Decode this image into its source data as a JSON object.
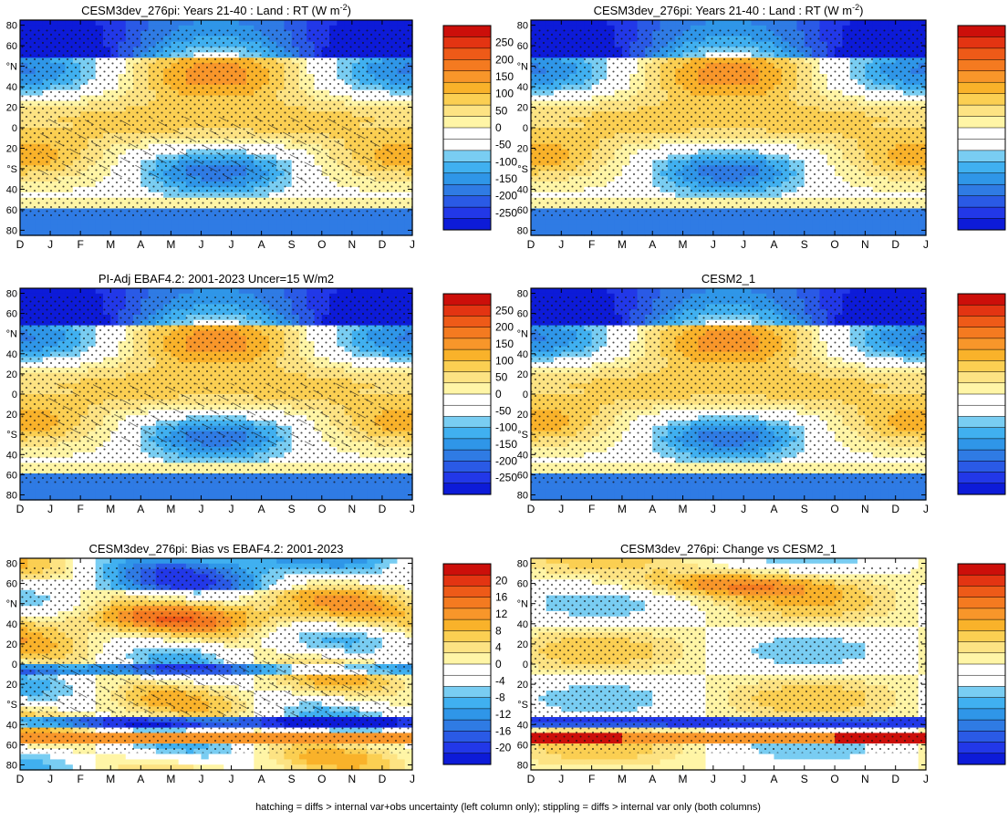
{
  "footer": "hatching = diffs > internal var+obs uncertainty (left column only); stippling = diffs > internal var only (both columns)",
  "months": [
    "D",
    "J",
    "F",
    "M",
    "A",
    "M",
    "J",
    "J",
    "A",
    "S",
    "O",
    "N",
    "D",
    "J"
  ],
  "lat_ticks": [
    "80",
    "60",
    "°N",
    "40",
    "20",
    "0",
    "20",
    "°S",
    "40",
    "60",
    "80"
  ],
  "chart_data": [
    {
      "type": "heatmap",
      "title": "CESM3dev_276pi: Years 21-40 : Land : RT (W m-2)",
      "title_main": "CESM3dev_276pi: Years 21-40 : Land : RT (W m",
      "title_sup": "-2",
      "title_end": ")",
      "x_categories": [
        "D",
        "J",
        "F",
        "M",
        "A",
        "M",
        "J",
        "J",
        "A",
        "S",
        "O",
        "N",
        "D",
        "J"
      ],
      "y_ticks": [
        "80",
        "60",
        "°N",
        "40",
        "20",
        "0",
        "20",
        "°S",
        "40",
        "60",
        "80"
      ],
      "colorbar": {
        "levels": [
          250,
          200,
          150,
          100,
          50,
          0,
          -50,
          -100,
          -150,
          -200,
          -250
        ]
      },
      "hatching": true,
      "stippling": true,
      "field": "full"
    },
    {
      "type": "heatmap",
      "title": "CESM3dev_276pi: Years 21-40 : Land : RT (W m-2)",
      "title_main": "CESM3dev_276pi: Years 21-40 : Land : RT (W m",
      "title_sup": "-2",
      "title_end": ")",
      "x_categories": [
        "D",
        "J",
        "F",
        "M",
        "A",
        "M",
        "J",
        "J",
        "A",
        "S",
        "O",
        "N",
        "D",
        "J"
      ],
      "y_ticks": [
        "80",
        "60",
        "°N",
        "40",
        "20",
        "0",
        "20",
        "°S",
        "40",
        "60",
        "80"
      ],
      "colorbar": {
        "levels": [
          250,
          200,
          150,
          100,
          50,
          0,
          -50,
          -100,
          -150,
          -200,
          -250
        ]
      },
      "hatching": false,
      "stippling": true,
      "field": "full"
    },
    {
      "type": "heatmap",
      "title": "PI-Adj EBAF4.2: 2001-2023 Uncer=15 W/m2",
      "title_main": "PI-Adj EBAF4.2: 2001-2023 Uncer=15 W/m2",
      "title_sup": "",
      "title_end": "",
      "x_categories": [
        "D",
        "J",
        "F",
        "M",
        "A",
        "M",
        "J",
        "J",
        "A",
        "S",
        "O",
        "N",
        "D",
        "J"
      ],
      "y_ticks": [
        "80",
        "60",
        "°N",
        "40",
        "20",
        "0",
        "20",
        "°S",
        "40",
        "60",
        "80"
      ],
      "colorbar": {
        "levels": [
          250,
          200,
          150,
          100,
          50,
          0,
          -50,
          -100,
          -150,
          -200,
          -250
        ]
      },
      "hatching": true,
      "stippling": true,
      "field": "full"
    },
    {
      "type": "heatmap",
      "title": "CESM2_1",
      "title_main": "CESM2_1",
      "title_sup": "",
      "title_end": "",
      "x_categories": [
        "D",
        "J",
        "F",
        "M",
        "A",
        "M",
        "J",
        "J",
        "A",
        "S",
        "O",
        "N",
        "D",
        "J"
      ],
      "y_ticks": [
        "80",
        "60",
        "°N",
        "40",
        "20",
        "0",
        "20",
        "°S",
        "40",
        "60",
        "80"
      ],
      "colorbar": {
        "levels": [
          250,
          200,
          150,
          100,
          50,
          0,
          -50,
          -100,
          -150,
          -200,
          -250
        ]
      },
      "hatching": false,
      "stippling": true,
      "field": "full"
    },
    {
      "type": "heatmap",
      "title": "CESM3dev_276pi: Bias vs EBAF4.2: 2001-2023",
      "title_main": "CESM3dev_276pi: Bias vs EBAF4.2: 2001-2023",
      "title_sup": "",
      "title_end": "",
      "x_categories": [
        "D",
        "J",
        "F",
        "M",
        "A",
        "M",
        "J",
        "J",
        "A",
        "S",
        "O",
        "N",
        "D",
        "J"
      ],
      "y_ticks": [
        "80",
        "60",
        "°N",
        "40",
        "20",
        "0",
        "20",
        "°S",
        "40",
        "60",
        "80"
      ],
      "colorbar": {
        "levels": [
          20,
          16,
          12,
          8,
          4,
          0,
          -4,
          -8,
          -12,
          -16,
          -20
        ]
      },
      "hatching": true,
      "stippling": true,
      "field": "bias"
    },
    {
      "type": "heatmap",
      "title": "CESM3dev_276pi: Change vs CESM2_1",
      "title_main": "CESM3dev_276pi: Change vs CESM2_1",
      "title_sup": "",
      "title_end": "",
      "x_categories": [
        "D",
        "J",
        "F",
        "M",
        "A",
        "M",
        "J",
        "J",
        "A",
        "S",
        "O",
        "N",
        "D",
        "J"
      ],
      "y_ticks": [
        "80",
        "60",
        "°N",
        "40",
        "20",
        "0",
        "20",
        "°S",
        "40",
        "60",
        "80"
      ],
      "colorbar": {
        "levels": [
          20,
          16,
          12,
          8,
          4,
          0,
          -4,
          -8,
          -12,
          -16,
          -20
        ]
      },
      "hatching": false,
      "stippling": true,
      "field": "change"
    }
  ],
  "colors": {
    "scale": [
      "#0d1bd8",
      "#2238e8",
      "#2a5ae6",
      "#2f7be4",
      "#2f96e8",
      "#40b0f0",
      "#79cdf2",
      "#ffffff",
      "#ffffff",
      "#fff5a6",
      "#fde383",
      "#fbcf52",
      "#f9b22a",
      "#f8962a",
      "#f47a20",
      "#ee5a18",
      "#e33412",
      "#cc0f0a"
    ]
  }
}
